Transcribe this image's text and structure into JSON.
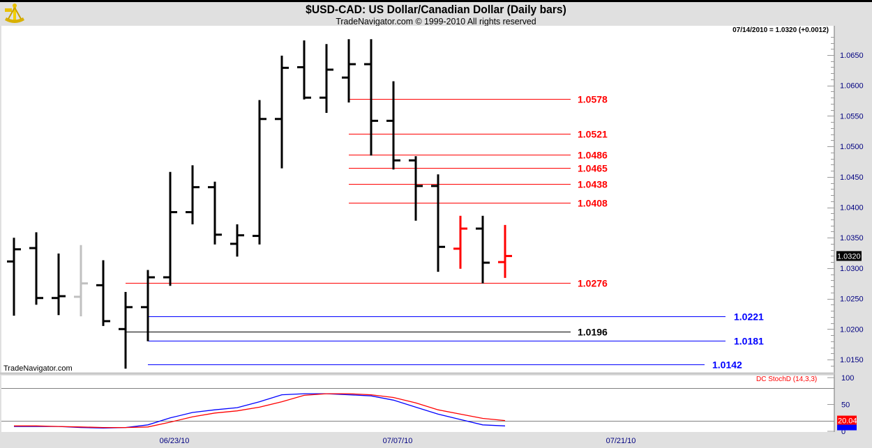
{
  "header": {
    "title": "$USD-CAD:  US Dollar/Canadian Dollar  (Daily bars)",
    "subtitle": "TradeNavigator.com © 1999-2010 All rights reserved",
    "quote": "07/14/2010 = 1.0320 (+0.0012)",
    "watermark": "TradeNavigator.com",
    "logo_icon": "sextant-icon"
  },
  "chart_data": [
    {
      "type": "ohlc",
      "title": "$USD-CAD:  US Dollar/Canadian Dollar  (Daily bars)",
      "ylim": [
        1.013,
        1.069
      ],
      "y_ticks": [
        "1.0650",
        "1.0600",
        "1.0550",
        "1.0500",
        "1.0450",
        "1.0400",
        "1.0350",
        "1.0300",
        "1.0250",
        "1.0200",
        "1.0150"
      ],
      "x_tick_labels": [
        "06/23/10",
        "07/07/10",
        "07/21/10"
      ],
      "last_price_label": "1.0320",
      "colors": {
        "up_default": "#000000",
        "highlight": "#ff0000",
        "muted": "#c0c0c0",
        "support": "#0000ff",
        "resistance": "#ff0000",
        "level_black": "#000000",
        "axis_text": "#000080"
      },
      "bars": [
        {
          "date": "06/14/10",
          "open": 1.0311,
          "high": 1.035,
          "low": 1.0222,
          "close": 1.0331,
          "color": "#000000"
        },
        {
          "date": "06/15/10",
          "open": 1.0333,
          "high": 1.0359,
          "low": 1.024,
          "close": 1.0251,
          "color": "#000000"
        },
        {
          "date": "06/16/10",
          "open": 1.0251,
          "high": 1.0324,
          "low": 1.0223,
          "close": 1.0254,
          "color": "#000000"
        },
        {
          "date": "06/17/10",
          "open": 1.0253,
          "high": 1.0338,
          "low": 1.0221,
          "close": 1.0275,
          "color": "#c0c0c0"
        },
        {
          "date": "06/18/10",
          "open": 1.0272,
          "high": 1.0313,
          "low": 1.0205,
          "close": 1.0213,
          "color": "#000000"
        },
        {
          "date": "06/21/10",
          "open": 1.02,
          "high": 1.0261,
          "low": 1.0135,
          "close": 1.0236,
          "color": "#000000"
        },
        {
          "date": "06/22/10",
          "open": 1.0236,
          "high": 1.0297,
          "low": 1.018,
          "close": 1.0285,
          "color": "#000000"
        },
        {
          "date": "06/23/10",
          "open": 1.0285,
          "high": 1.0458,
          "low": 1.0271,
          "close": 1.0392,
          "color": "#000000"
        },
        {
          "date": "06/24/10",
          "open": 1.0392,
          "high": 1.0469,
          "low": 1.0372,
          "close": 1.0433,
          "color": "#000000"
        },
        {
          "date": "06/25/10",
          "open": 1.0433,
          "high": 1.0442,
          "low": 1.0339,
          "close": 1.0355,
          "color": "#000000"
        },
        {
          "date": "06/28/10",
          "open": 1.034,
          "high": 1.0372,
          "low": 1.0319,
          "close": 1.0354,
          "color": "#000000"
        },
        {
          "date": "06/29/10",
          "open": 1.0353,
          "high": 1.0576,
          "low": 1.0339,
          "close": 1.0545,
          "color": "#000000"
        },
        {
          "date": "06/30/10",
          "open": 1.0545,
          "high": 1.0649,
          "low": 1.0464,
          "close": 1.0629,
          "color": "#000000"
        },
        {
          "date": "07/01/10",
          "open": 1.063,
          "high": 1.0674,
          "low": 1.0577,
          "close": 1.058,
          "color": "#000000"
        },
        {
          "date": "07/02/10",
          "open": 1.058,
          "high": 1.0668,
          "low": 1.0555,
          "close": 1.0626,
          "color": "#000000"
        },
        {
          "date": "07/05/10",
          "open": 1.0613,
          "high": 1.0676,
          "low": 1.0572,
          "close": 1.0635,
          "color": "#000000"
        },
        {
          "date": "07/06/10",
          "open": 1.0635,
          "high": 1.0676,
          "low": 1.0485,
          "close": 1.0542,
          "color": "#000000"
        },
        {
          "date": "07/07/10",
          "open": 1.0542,
          "high": 1.0607,
          "low": 1.0462,
          "close": 1.0477,
          "color": "#000000"
        },
        {
          "date": "07/08/10",
          "open": 1.0477,
          "high": 1.0484,
          "low": 1.0378,
          "close": 1.0435,
          "color": "#000000"
        },
        {
          "date": "07/09/10",
          "open": 1.0435,
          "high": 1.0454,
          "low": 1.0294,
          "close": 1.0335,
          "color": "#000000"
        },
        {
          "date": "07/12/10",
          "open": 1.0332,
          "high": 1.0386,
          "low": 1.0299,
          "close": 1.0365,
          "color": "#ff0000"
        },
        {
          "date": "07/13/10",
          "open": 1.0365,
          "high": 1.0386,
          "low": 1.0275,
          "close": 1.0309,
          "color": "#000000"
        },
        {
          "date": "07/14/10",
          "open": 1.031,
          "high": 1.0371,
          "low": 1.0284,
          "close": 1.032,
          "color": "#ff0000"
        }
      ],
      "levels": [
        {
          "label": "1.0578",
          "value": 1.0578,
          "color": "#ff0000",
          "start": "07/05/10"
        },
        {
          "label": "1.0521",
          "value": 1.0521,
          "color": "#ff0000",
          "start": "07/05/10"
        },
        {
          "label": "1.0486",
          "value": 1.0486,
          "color": "#ff0000",
          "start": "07/05/10"
        },
        {
          "label": "1.0465",
          "value": 1.0465,
          "color": "#ff0000",
          "start": "07/05/10"
        },
        {
          "label": "1.0438",
          "value": 1.0438,
          "color": "#ff0000",
          "start": "07/05/10"
        },
        {
          "label": "1.0408",
          "value": 1.0408,
          "color": "#ff0000",
          "start": "07/05/10"
        },
        {
          "label": "1.0276",
          "value": 1.0276,
          "color": "#ff0000",
          "start": "06/21/10"
        },
        {
          "label": "1.0221",
          "value": 1.0221,
          "color": "#0000ff",
          "start": "06/22/10"
        },
        {
          "label": "1.0196",
          "value": 1.0196,
          "color": "#000000",
          "start": "06/21/10"
        },
        {
          "label": "1.0181",
          "value": 1.0181,
          "color": "#0000ff",
          "start": "06/22/10"
        },
        {
          "label": "1.0142",
          "value": 1.0142,
          "color": "#0000ff",
          "start": "06/22/10"
        }
      ]
    },
    {
      "type": "line",
      "title": "DC StochD (14,3,3)",
      "ylim": [
        0,
        100
      ],
      "y_ticks": [
        "100",
        "50",
        "0"
      ],
      "reference_lines": [
        80,
        20
      ],
      "last_value_label": "20.04",
      "series": [
        {
          "color": "#0000ff",
          "values": [
            9,
            9,
            9,
            7,
            6,
            7,
            12,
            25,
            35,
            40,
            44,
            55,
            68,
            70,
            70,
            68,
            66,
            58,
            45,
            32,
            22,
            12,
            10
          ]
        },
        {
          "color": "#ff0000",
          "values": [
            10,
            10,
            9,
            8,
            7,
            7,
            8,
            17,
            27,
            34,
            38,
            45,
            55,
            67,
            70,
            70,
            68,
            63,
            53,
            40,
            32,
            24,
            20.04
          ]
        }
      ]
    }
  ]
}
